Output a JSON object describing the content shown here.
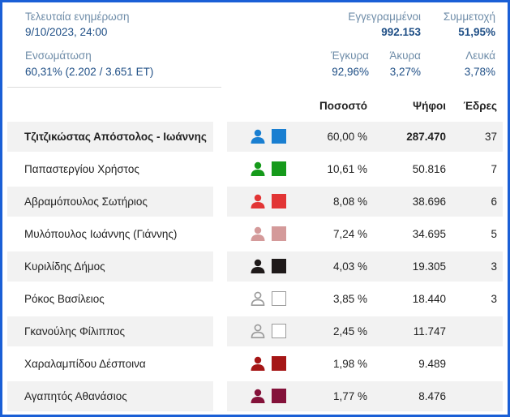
{
  "summary": {
    "last_update_label": "Τελευταία ενημέρωση",
    "last_update_value": "9/10/2023, 24:00",
    "integration_label": "Ενσωμάτωση",
    "integration_value": "60,31% (2.202 / 3.651 ΕΤ)",
    "registered_label": "Εγγεγραμμένοι",
    "registered_value": "992.153",
    "turnout_label": "Συμμετοχή",
    "turnout_value": "51,95%",
    "valid_label": "Έγκυρα",
    "valid_value": "92,96%",
    "invalid_label": "Άκυρα",
    "invalid_value": "3,27%",
    "blank_label": "Λευκά",
    "blank_value": "3,78%"
  },
  "table": {
    "headers": {
      "percent": "Ποσοστό",
      "votes": "Ψήφοι",
      "seats": "Έδρες"
    },
    "rows": [
      {
        "name": "Τζιτζικώστας Απόστολος - Ιωάννης",
        "percent": "60,00 %",
        "votes": "287.470",
        "seats": "37",
        "color": "#1a7fd1",
        "icon": "person-icon",
        "outline": false
      },
      {
        "name": "Παπαστεργίου Χρήστος",
        "percent": "10,61 %",
        "votes": "50.816",
        "seats": "7",
        "color": "#169a1b",
        "icon": "person-icon",
        "outline": false
      },
      {
        "name": "Αβραμόπουλος Σωτήριος",
        "percent": "8,08 %",
        "votes": "38.696",
        "seats": "6",
        "color": "#e23535",
        "icon": "person-icon",
        "outline": false
      },
      {
        "name": "Μυλόπουλος Ιωάννης (Γιάννης)",
        "percent": "7,24 %",
        "votes": "34.695",
        "seats": "5",
        "color": "#d49a9a",
        "icon": "person-icon",
        "outline": false
      },
      {
        "name": "Κυριλίδης Δήμος",
        "percent": "4,03 %",
        "votes": "19.305",
        "seats": "3",
        "color": "#1f1a1a",
        "icon": "person-icon",
        "outline": false
      },
      {
        "name": "Ρόκος Βασίλειος",
        "percent": "3,85 %",
        "votes": "18.440",
        "seats": "3",
        "color": "#9a9a9a",
        "icon": "person-outline-icon",
        "outline": true
      },
      {
        "name": "Γκανούλης Φίλιππος",
        "percent": "2,45 %",
        "votes": "11.747",
        "seats": "",
        "color": "#9a9a9a",
        "icon": "person-outline-icon",
        "outline": true
      },
      {
        "name": "Χαραλαμπίδου Δέσποινα",
        "percent": "1,98 %",
        "votes": "9.489",
        "seats": "",
        "color": "#a51616",
        "icon": "person-icon",
        "outline": false
      },
      {
        "name": "Αγαπητός Αθανάσιος",
        "percent": "1,77 %",
        "votes": "8.476",
        "seats": "",
        "color": "#84123a",
        "icon": "person-icon",
        "outline": false
      }
    ]
  }
}
